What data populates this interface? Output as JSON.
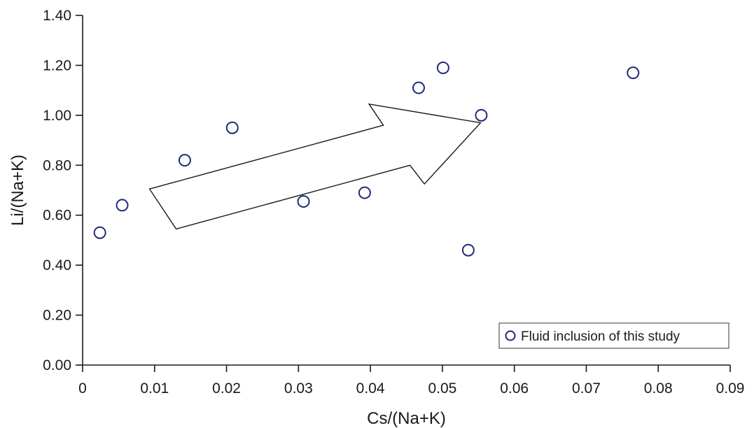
{
  "chart_data": {
    "type": "scatter",
    "title": "",
    "xlabel": "Cs/(Na+K)",
    "ylabel": "Li/(Na+K)",
    "xlim": [
      0,
      0.09
    ],
    "ylim": [
      0,
      1.4
    ],
    "x_ticks": [
      "0",
      "0.01",
      "0.02",
      "0.03",
      "0.04",
      "0.05",
      "0.06",
      "0.07",
      "0.08",
      "0.09"
    ],
    "y_ticks": [
      "0.00",
      "0.20",
      "0.40",
      "0.60",
      "0.80",
      "1.00",
      "1.20",
      "1.40"
    ],
    "grid": false,
    "legend": {
      "position": "bottom-right",
      "entries": [
        "Fluid inclusion of this study"
      ]
    },
    "series": [
      {
        "name": "Fluid inclusion of this study",
        "marker": "open-circle",
        "color": "#1f2a78",
        "points": [
          {
            "x": 0.0024,
            "y": 0.53
          },
          {
            "x": 0.0055,
            "y": 0.64
          },
          {
            "x": 0.0142,
            "y": 0.82
          },
          {
            "x": 0.0208,
            "y": 0.95
          },
          {
            "x": 0.0307,
            "y": 0.655
          },
          {
            "x": 0.0392,
            "y": 0.69
          },
          {
            "x": 0.0467,
            "y": 1.11
          },
          {
            "x": 0.0501,
            "y": 1.19
          },
          {
            "x": 0.0536,
            "y": 0.46
          },
          {
            "x": 0.0554,
            "y": 1.0
          },
          {
            "x": 0.0765,
            "y": 1.17
          }
        ]
      }
    ],
    "annotations": [
      {
        "type": "trend-arrow",
        "outline": [
          [
            0.013,
            0.545
          ],
          [
            0.0455,
            0.8
          ],
          [
            0.0475,
            0.725
          ],
          [
            0.0553,
            0.97
          ],
          [
            0.0398,
            1.045
          ],
          [
            0.0418,
            0.96
          ],
          [
            0.0093,
            0.705
          ]
        ]
      }
    ]
  }
}
